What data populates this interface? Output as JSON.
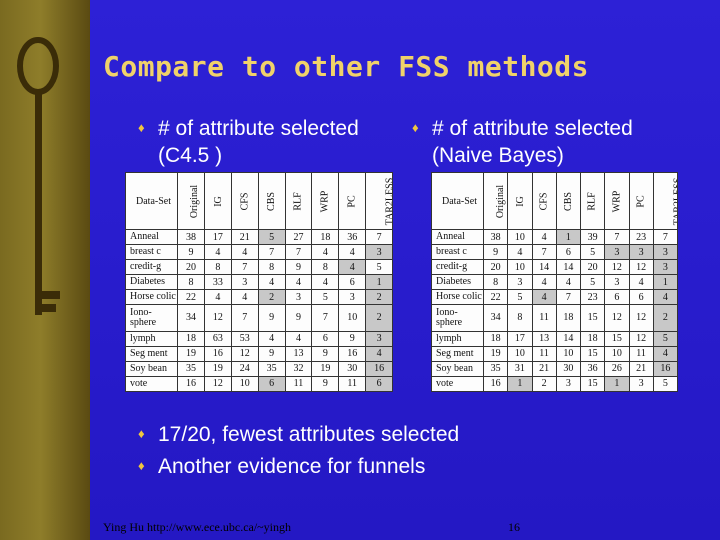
{
  "title": "Compare to other FSS methods",
  "left_heading": [
    "# of attribute selected",
    "(C4.5 )"
  ],
  "right_heading": [
    "# of attribute selected",
    "(Naive Bayes)"
  ],
  "table_columns": [
    "Original",
    "IG",
    "CFS",
    "CBS",
    "RLF",
    "WRP",
    "PC",
    "TAR2LESS"
  ],
  "dataset_header": "Data-Set",
  "c45_table": [
    {
      "name": "Anneal",
      "values": [
        "38",
        "17",
        "21",
        "5",
        "27",
        "18",
        "36",
        "7"
      ]
    },
    {
      "name": "breast c",
      "values": [
        "9",
        "4",
        "4",
        "7",
        "7",
        "4",
        "4",
        "3"
      ]
    },
    {
      "name": "credit-g",
      "values": [
        "20",
        "8",
        "7",
        "8",
        "9",
        "8",
        "4",
        "5"
      ]
    },
    {
      "name": "Diabetes",
      "values": [
        "8",
        "33",
        "3",
        "4",
        "4",
        "4",
        "6",
        "1"
      ]
    },
    {
      "name": "Horse colic",
      "values": [
        "22",
        "4",
        "4",
        "2",
        "3",
        "5",
        "3",
        "2"
      ]
    },
    {
      "name": "Iono-sphere",
      "values": [
        "34",
        "12",
        "7",
        "9",
        "9",
        "7",
        "10",
        "2"
      ]
    },
    {
      "name": "lymph",
      "values": [
        "18",
        "63",
        "53",
        "4",
        "4",
        "6",
        "9",
        "3"
      ]
    },
    {
      "name": "Seg ment",
      "values": [
        "19",
        "16",
        "12",
        "9",
        "13",
        "9",
        "16",
        "4"
      ]
    },
    {
      "name": "Soy bean",
      "values": [
        "35",
        "19",
        "24",
        "35",
        "32",
        "19",
        "30",
        "16"
      ]
    },
    {
      "name": "vote",
      "values": [
        "16",
        "12",
        "10",
        "6",
        "11",
        "9",
        "11",
        "6"
      ]
    }
  ],
  "nb_table": [
    {
      "name": "Anneal",
      "values": [
        "38",
        "10",
        "4",
        "1",
        "39",
        "7",
        "23",
        "7"
      ]
    },
    {
      "name": "breast c",
      "values": [
        "9",
        "4",
        "7",
        "6",
        "5",
        "3",
        "3",
        "3"
      ]
    },
    {
      "name": "credit-g",
      "values": [
        "20",
        "10",
        "14",
        "14",
        "20",
        "12",
        "12",
        "3"
      ]
    },
    {
      "name": "Diabetes",
      "values": [
        "8",
        "3",
        "4",
        "4",
        "5",
        "3",
        "4",
        "1"
      ]
    },
    {
      "name": "Horse colic",
      "values": [
        "22",
        "5",
        "4",
        "7",
        "23",
        "6",
        "6",
        "4"
      ]
    },
    {
      "name": "Iono-sphere",
      "values": [
        "34",
        "8",
        "11",
        "18",
        "15",
        "12",
        "12",
        "2"
      ]
    },
    {
      "name": "lymph",
      "values": [
        "18",
        "17",
        "13",
        "14",
        "18",
        "15",
        "12",
        "5"
      ]
    },
    {
      "name": "Seg ment",
      "values": [
        "19",
        "10",
        "11",
        "10",
        "15",
        "10",
        "11",
        "4"
      ]
    },
    {
      "name": "Soy bean",
      "values": [
        "35",
        "31",
        "21",
        "30",
        "36",
        "26",
        "21",
        "16"
      ]
    },
    {
      "name": "vote",
      "values": [
        "16",
        "1",
        "2",
        "3",
        "15",
        "1",
        "3",
        "5"
      ]
    }
  ],
  "bottom_bullets": [
    "17/20, fewest attributes selected",
    "Another evidence for funnels"
  ],
  "footer": {
    "author": "Ying Hu http://www.ece.ubc.ca/~yingh",
    "page": "16"
  },
  "bullet_glyph": "♦",
  "colors": {
    "background": "#2a1ecf",
    "title": "#f0d26a",
    "text": "#ffffff",
    "bullet": "#f0c640"
  }
}
